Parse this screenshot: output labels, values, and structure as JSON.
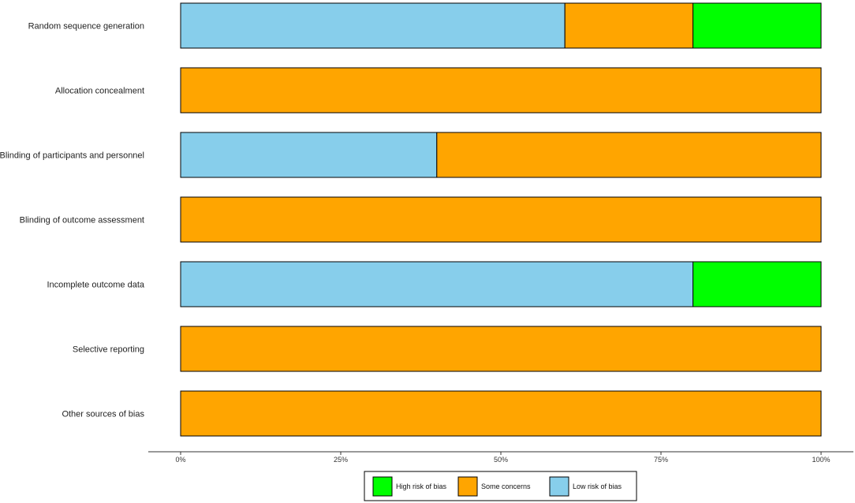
{
  "chart_data": {
    "type": "bar",
    "orientation": "horizontal",
    "stacked": true,
    "categories": [
      "Random sequence generation",
      "Allocation concealment",
      "Blinding of participants and personnel",
      "Blinding of outcome assessment",
      "Incomplete outcome data",
      "Selective reporting",
      "Other sources of bias"
    ],
    "series": [
      {
        "name": "Low risk of bias",
        "color": "#87CEEB",
        "values": [
          60,
          0,
          40,
          0,
          80,
          0,
          0
        ]
      },
      {
        "name": "Some concerns",
        "color": "#FFA500",
        "values": [
          20,
          100,
          60,
          100,
          0,
          100,
          100
        ]
      },
      {
        "name": "High risk of bias",
        "color": "#00FF00",
        "values": [
          20,
          0,
          0,
          0,
          20,
          0,
          0
        ]
      }
    ],
    "xlim": [
      0,
      100
    ],
    "x_ticks": [
      0,
      25,
      50,
      75,
      100
    ],
    "x_tick_labels": [
      "0%",
      "25%",
      "50%",
      "75%",
      "100%"
    ],
    "legend": {
      "position": "bottom",
      "entries": [
        {
          "label": "High risk of bias",
          "color": "#00FF00"
        },
        {
          "label": "Some concerns",
          "color": "#FFA500"
        },
        {
          "label": "Low risk of bias",
          "color": "#87CEEB"
        }
      ]
    },
    "grid": false
  }
}
